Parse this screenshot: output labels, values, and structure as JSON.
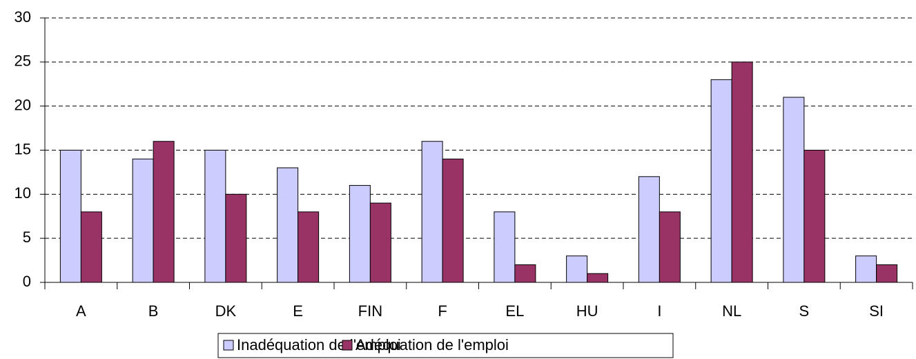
{
  "chart_data": {
    "type": "bar",
    "categories": [
      "A",
      "B",
      "DK",
      "E",
      "FIN",
      "F",
      "EL",
      "HU",
      "I",
      "NL",
      "S",
      "SI"
    ],
    "series": [
      {
        "name": "Inadéquation de l'emploi",
        "color": "#ccccff",
        "values": [
          15,
          14,
          15,
          13,
          11,
          16,
          8,
          3,
          12,
          23,
          21,
          3
        ]
      },
      {
        "name": "Adéquation de l'emploi",
        "color": "#993366",
        "values": [
          8,
          16,
          10,
          8,
          9,
          14,
          2,
          1,
          8,
          25,
          15,
          2
        ]
      }
    ],
    "ylim": [
      0,
      30
    ],
    "yticks": [
      0,
      5,
      10,
      15,
      20,
      25,
      30
    ],
    "grid": true,
    "legend": "bottom"
  }
}
